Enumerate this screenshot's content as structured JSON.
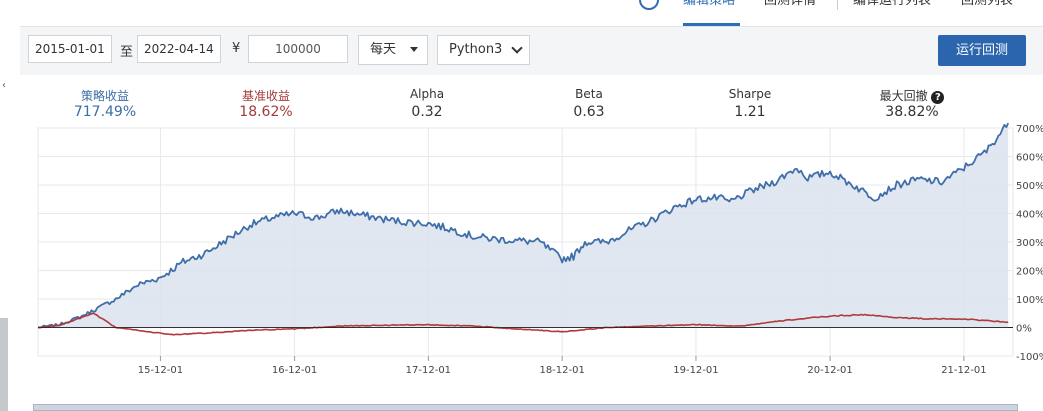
{
  "nav": {
    "tabs": [
      "编辑策略",
      "回测详情",
      "编译运行列表",
      "回测列表"
    ],
    "active_tab": 0
  },
  "controls": {
    "start_date": "2015-01-01",
    "to_label": "至",
    "end_date": "2022-04-14",
    "currency_symbol": "¥",
    "capital": "100000",
    "frequency": "每天",
    "language": "Python3",
    "run_button": "运行回测"
  },
  "stats": {
    "strategy_return": {
      "label": "策略收益",
      "value": "717.49%"
    },
    "benchmark_return": {
      "label": "基准收益",
      "value": "18.62%"
    },
    "alpha": {
      "label": "Alpha",
      "value": "0.32"
    },
    "beta": {
      "label": "Beta",
      "value": "0.63"
    },
    "sharpe": {
      "label": "Sharpe",
      "value": "1.21"
    },
    "max_drawdown": {
      "label": "最大回撤",
      "value": "38.82%",
      "help_icon": "question-circle-icon"
    }
  },
  "colors": {
    "strategy": "#3f6ea8",
    "benchmark": "#b03a3a",
    "accent": "#2b65ad",
    "fill": "#dbe3ee"
  },
  "chart_data": {
    "type": "line",
    "title": "",
    "xlabel": "",
    "ylabel": "",
    "x_tick_labels": [
      "15-12-01",
      "16-12-01",
      "17-12-01",
      "18-12-01",
      "19-12-01",
      "20-12-01",
      "21-12-01"
    ],
    "y_tick_labels": [
      "-100%",
      "0%",
      "100%",
      "200%",
      "300%",
      "400%",
      "500%",
      "600%",
      "700%"
    ],
    "ylim": [
      -100,
      700
    ],
    "x_range": [
      "2015-01-01",
      "2022-04-14"
    ],
    "series": [
      {
        "name": "策略收益",
        "area_fill": true,
        "x": [
          "2015-01",
          "2015-03",
          "2015-05",
          "2015-06",
          "2015-08",
          "2015-10",
          "2015-12",
          "2016-02",
          "2016-04",
          "2016-06",
          "2016-08",
          "2016-10",
          "2016-12",
          "2017-02",
          "2017-04",
          "2017-06",
          "2017-08",
          "2017-10",
          "2017-12",
          "2018-02",
          "2018-04",
          "2018-06",
          "2018-08",
          "2018-10",
          "2018-12",
          "2019-01",
          "2019-02",
          "2019-04",
          "2019-06",
          "2019-08",
          "2019-10",
          "2019-12",
          "2020-02",
          "2020-03",
          "2020-05",
          "2020-07",
          "2020-09",
          "2020-10",
          "2020-12",
          "2021-02",
          "2021-04",
          "2021-06",
          "2021-08",
          "2021-10",
          "2021-12",
          "2022-02",
          "2022-04"
        ],
        "values": [
          0,
          10,
          40,
          60,
          100,
          150,
          175,
          230,
          260,
          310,
          360,
          385,
          400,
          385,
          410,
          395,
          380,
          370,
          365,
          345,
          320,
          310,
          305,
          300,
          240,
          250,
          300,
          300,
          340,
          375,
          420,
          450,
          455,
          440,
          480,
          510,
          560,
          525,
          545,
          500,
          455,
          500,
          520,
          510,
          560,
          620,
          717
        ]
      },
      {
        "name": "基准收益",
        "area_fill": false,
        "x": [
          "2015-01",
          "2015-03",
          "2015-05",
          "2015-06",
          "2015-08",
          "2015-10",
          "2016-01",
          "2016-04",
          "2016-08",
          "2016-12",
          "2017-04",
          "2017-08",
          "2017-12",
          "2018-04",
          "2018-08",
          "2018-12",
          "2019-04",
          "2019-08",
          "2019-12",
          "2020-04",
          "2020-08",
          "2020-12",
          "2021-03",
          "2021-06",
          "2021-09",
          "2021-12",
          "2022-04"
        ],
        "values": [
          0,
          8,
          35,
          50,
          0,
          -10,
          -25,
          -20,
          -10,
          -5,
          5,
          8,
          10,
          5,
          -5,
          -15,
          0,
          5,
          10,
          5,
          25,
          40,
          45,
          35,
          30,
          30,
          18.62
        ]
      }
    ]
  }
}
